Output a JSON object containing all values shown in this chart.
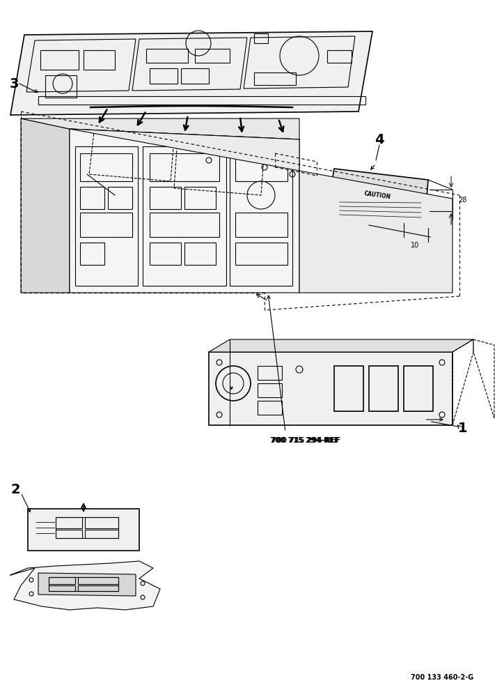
{
  "title": "",
  "background_color": "#ffffff",
  "line_color": "#000000",
  "text_color": "#000000",
  "label_1": "1",
  "label_2": "2",
  "label_3": "3",
  "label_4": "4",
  "ref_text": "700 715 294-REF",
  "footer_text": "700 133 460-2-G",
  "dim_28": "28",
  "dim_10": "10",
  "figsize": [
    7.24,
    10.0
  ],
  "dpi": 100
}
